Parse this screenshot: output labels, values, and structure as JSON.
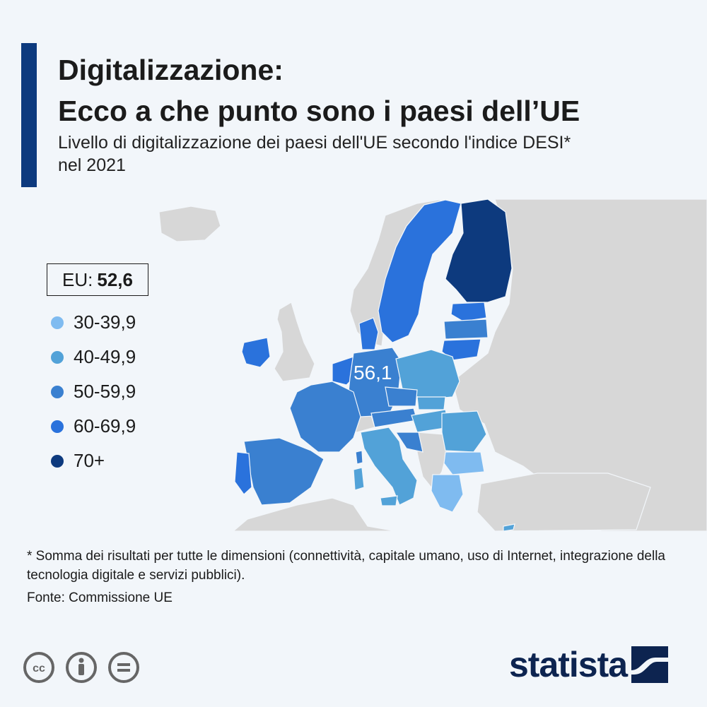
{
  "title_line1": "Digitalizzazione:",
  "title_line2": "Ecco a che punto sono i paesi dell’UE",
  "subtitle": "Livello di digitalizzazione dei paesi dell'UE secondo l'indice DESI* nel 2021",
  "eu_label": "EU:",
  "eu_value": "52,6",
  "legend": [
    {
      "label": "30-39,9",
      "color": "#7fbbf0"
    },
    {
      "label": "40-49,9",
      "color": "#52a2d8"
    },
    {
      "label": "50-59,9",
      "color": "#3a80d0"
    },
    {
      "label": "60-69,9",
      "color": "#2a72dc"
    },
    {
      "label": "70+",
      "color": "#0d3a7e"
    }
  ],
  "map_label": "56,1",
  "colors": {
    "background": "#f2f6fa",
    "non_eu_land": "#d7d7d7",
    "accent": "#0d3a7e",
    "brand": "#0d2450"
  },
  "footnote": "* Somma dei risultati per tutte le dimensioni (connettività, capitale umano, uso di Internet, integrazione della tecnologia digitale e servizi pubblici).",
  "source": "Fonte: Commissione UE",
  "brand": "statista",
  "license_icons": [
    "cc-icon",
    "attribution-icon",
    "no-derivatives-icon"
  ]
}
